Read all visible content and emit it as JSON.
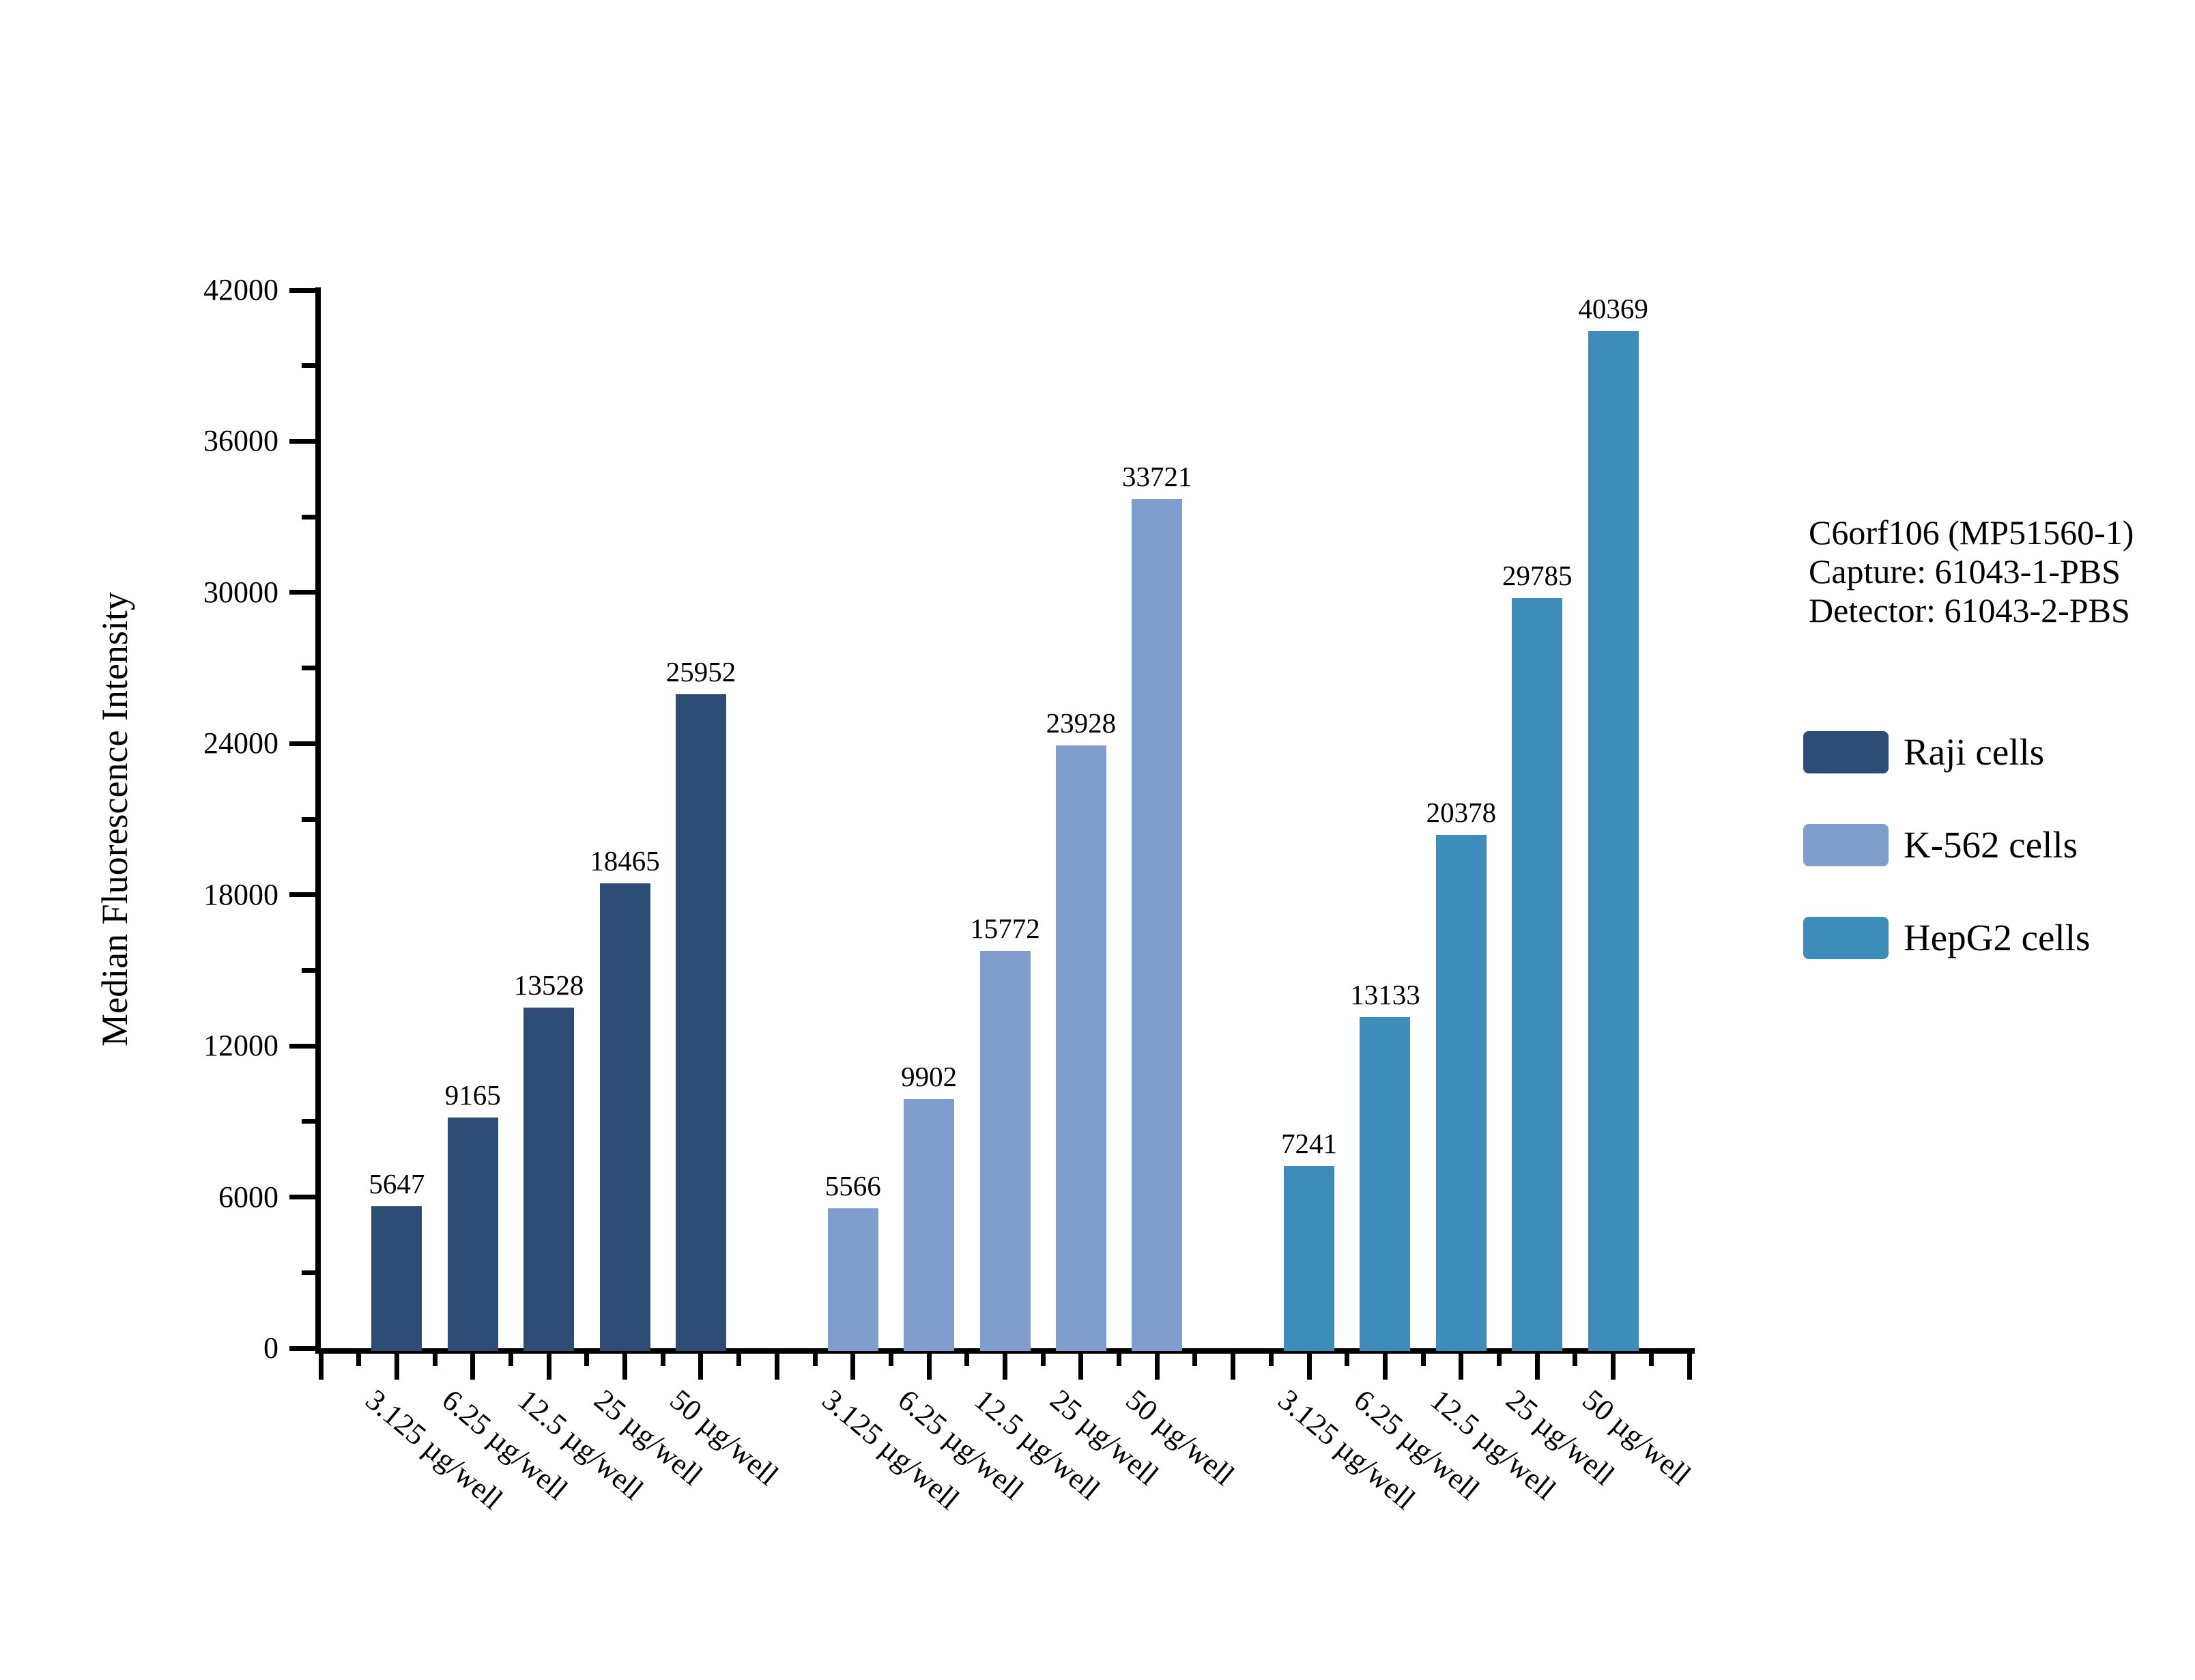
{
  "chart_data": {
    "type": "bar",
    "title": "",
    "xlabel": "",
    "ylabel": "Median Fluorescence Intensity",
    "ylim": [
      0,
      42000
    ],
    "ytick_step": 6000,
    "ytick_minor_step": 3000,
    "grid": false,
    "bar_labels": true,
    "legend_position": "right",
    "categories": [
      "3.125 µg/well",
      "6.25 µg/well",
      "12.5 µg/well",
      "25 µg/well",
      "50 µg/well"
    ],
    "series": [
      {
        "name": "Raji cells",
        "color": "#2e4d74",
        "values": [
          5647,
          9165,
          13528,
          18465,
          25952
        ]
      },
      {
        "name": "K-562 cells",
        "color": "#7f9ecd",
        "values": [
          5566,
          9902,
          15772,
          23928,
          33721
        ]
      },
      {
        "name": "HepG2 cells",
        "color": "#3d8cba",
        "values": [
          7241,
          13133,
          20378,
          29785,
          40369
        ]
      }
    ]
  },
  "annotation": {
    "lines": [
      "C6orf106 (MP51560-1)",
      "Capture: 61043-1-PBS",
      "Detector: 61043-2-PBS"
    ]
  },
  "colors": {
    "axis": "#000000",
    "text": "#000000",
    "background": "#ffffff"
  }
}
